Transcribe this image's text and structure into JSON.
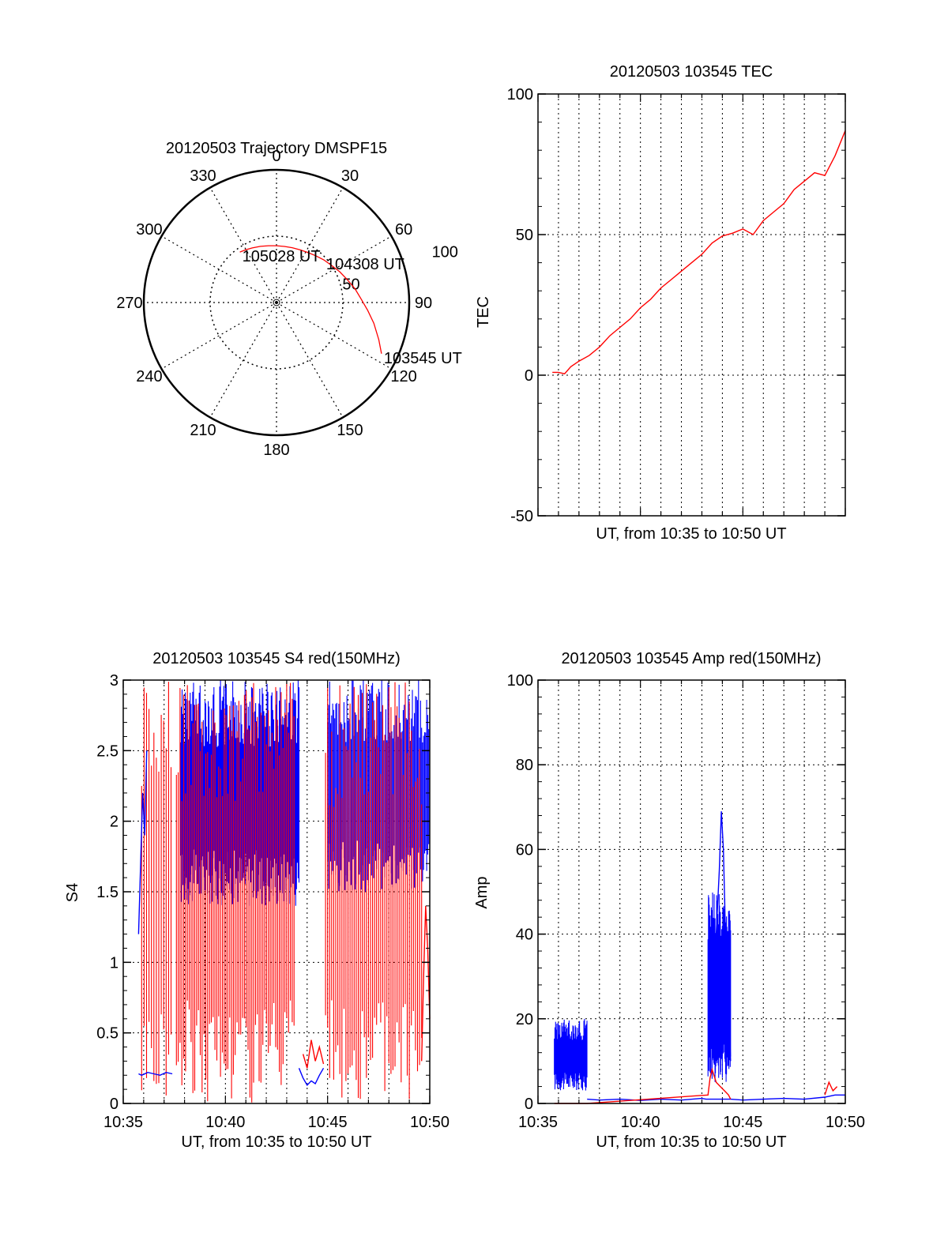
{
  "colors": {
    "red": "#ff0000",
    "blue": "#0000ff",
    "axis": "#000000",
    "grid": "#000000"
  },
  "chart_data": [
    {
      "id": "trajectory",
      "type": "polar",
      "title": "20120503 Trajectory DMSPF15",
      "angle_labels": [
        "0",
        "30",
        "60",
        "90",
        "120",
        "150",
        "180",
        "210",
        "240",
        "270",
        "300",
        "330"
      ],
      "angle_values": [
        0,
        30,
        60,
        90,
        120,
        150,
        180,
        210,
        240,
        270,
        300,
        330
      ],
      "radial_labels": [
        "50",
        "100"
      ],
      "radial_values": [
        50,
        100
      ],
      "r_max": 100,
      "track": {
        "azimuth": [
          116,
          110,
          102,
          95,
          88,
          80,
          72,
          64,
          56,
          48,
          40,
          32,
          24,
          16,
          8,
          0,
          -8,
          -16,
          -24,
          -30,
          -36
        ],
        "elevation": [
          12,
          18,
          25,
          31,
          36,
          40,
          44,
          47,
          50,
          52,
          54,
          55.5,
          56.5,
          57,
          57.3,
          57.2,
          56.8,
          56,
          55,
          54,
          53
        ]
      },
      "time_labels": [
        {
          "text": "103545 UT",
          "az": 116,
          "el": 12
        },
        {
          "text": "104308 UT",
          "az": 48,
          "el": 52
        },
        {
          "text": "105028 UT",
          "az": -36,
          "el": 53
        }
      ]
    },
    {
      "id": "tec",
      "type": "line",
      "title": "20120503 103545 TEC",
      "xlabel": "UT, from 10:35 to 10:50 UT",
      "ylabel": "TEC",
      "xlim": [
        0,
        15
      ],
      "ylim": [
        -50,
        100
      ],
      "y_ticks": [
        "-50",
        "0",
        "50",
        "100"
      ],
      "x_tick_labels": [],
      "series": [
        {
          "color": "#ff0000",
          "x": [
            0.7,
            1.0,
            1.3,
            1.6,
            2.0,
            2.5,
            3.0,
            3.5,
            4.0,
            4.5,
            5.0,
            5.5,
            6.0,
            6.5,
            7.0,
            7.5,
            8.0,
            8.5,
            9.0,
            9.5,
            10.0,
            10.5,
            11.0,
            11.5,
            12.0,
            12.5,
            13.0,
            13.5,
            14.0,
            14.5,
            15.0
          ],
          "y": [
            1,
            1,
            0.5,
            3,
            5,
            7,
            10,
            14,
            17,
            20,
            24,
            27,
            31,
            34,
            37,
            40,
            43,
            47,
            49.5,
            50.5,
            52,
            50,
            55,
            58,
            61,
            66,
            69,
            72,
            71,
            78,
            87
          ]
        }
      ]
    },
    {
      "id": "s4",
      "type": "line",
      "title": "20120503 103545 S4 red(150MHz)",
      "xlabel": "UT, from 10:35 to 10:50 UT",
      "ylabel": "S4",
      "xlim": [
        0,
        15
      ],
      "ylim": [
        0,
        3
      ],
      "y_ticks": [
        "0",
        "0.5",
        "1",
        "1.5",
        "2",
        "2.5",
        "3"
      ],
      "x_tick_labels": [
        "10:35",
        "10:40",
        "10:45",
        "10:50"
      ],
      "x_tick_values": [
        0,
        5,
        10,
        15
      ],
      "noise_ranges": [
        {
          "color": "#0000ff",
          "x0": 2.8,
          "x1": 8.6,
          "ymin": 1.4,
          "ymax": 3,
          "step": 0.04
        },
        {
          "color": "#ff0000",
          "x0": 0.9,
          "x1": 2.4,
          "ymin": 0,
          "ymax": 3,
          "step": 0.12
        },
        {
          "color": "#ff0000",
          "x0": 2.6,
          "x1": 8.4,
          "ymin": 0,
          "ymax": 3,
          "step": 0.09
        },
        {
          "color": "#0000ff",
          "x0": 10.0,
          "x1": 15,
          "ymin": 1.5,
          "ymax": 3,
          "step": 0.05
        },
        {
          "color": "#ff0000",
          "x0": 9.9,
          "x1": 14.6,
          "ymin": 0,
          "ymax": 3,
          "step": 0.1
        }
      ],
      "series": [
        {
          "color": "#0000ff",
          "x": [
            0.75,
            0.9,
            1.2,
            1.5,
            1.8,
            2.1,
            2.4
          ],
          "y": [
            0.21,
            0.2,
            0.22,
            0.21,
            0.2,
            0.22,
            0.21
          ]
        },
        {
          "color": "#0000ff",
          "x": [
            0.75,
            0.85,
            0.95,
            1.05,
            1.15
          ],
          "y": [
            1.2,
            1.7,
            2.2,
            1.9,
            2.5
          ]
        },
        {
          "color": "#0000ff",
          "x": [
            8.6,
            8.8,
            9.0,
            9.2,
            9.4,
            9.6,
            9.8
          ],
          "y": [
            0.25,
            0.18,
            0.13,
            0.16,
            0.14,
            0.2,
            0.25
          ]
        },
        {
          "color": "#ff0000",
          "x": [
            8.8,
            9.0,
            9.2,
            9.4,
            9.6,
            9.8
          ],
          "y": [
            0.35,
            0.25,
            0.45,
            0.3,
            0.4,
            0.28
          ]
        },
        {
          "color": "#ff0000",
          "x": [
            14.6,
            14.7,
            14.8,
            14.9,
            15.0
          ],
          "y": [
            0.3,
            0.9,
            1.4,
            1.1,
            0.6
          ]
        }
      ]
    },
    {
      "id": "amp",
      "type": "line",
      "title": "20120503 103545 Amp red(150MHz)",
      "xlabel": "UT, from 10:35 to 10:50 UT",
      "ylabel": "Amp",
      "xlim": [
        0,
        15
      ],
      "ylim": [
        0,
        100
      ],
      "y_ticks": [
        "0",
        "20",
        "40",
        "60",
        "80",
        "100"
      ],
      "x_tick_labels": [
        "10:35",
        "10:40",
        "10:45",
        "10:50"
      ],
      "x_tick_values": [
        0,
        5,
        10,
        15
      ],
      "noise_ranges": [
        {
          "color": "#0000ff",
          "x0": 0.8,
          "x1": 2.4,
          "ymin": 3,
          "ymax": 20,
          "step": 0.03
        },
        {
          "color": "#0000ff",
          "x0": 8.3,
          "x1": 9.4,
          "ymin": 5,
          "ymax": 50,
          "step": 0.02
        }
      ],
      "series": [
        {
          "color": "#0000ff",
          "x": [
            2.4,
            3.0,
            4.0,
            5.0,
            6.0,
            7.0,
            8.0,
            8.2,
            9.4,
            10.0,
            11.0,
            12.0,
            13.0,
            14.0,
            14.5,
            15.0
          ],
          "y": [
            1,
            0.8,
            1,
            0.7,
            1,
            0.8,
            1.2,
            1.0,
            1.0,
            0.8,
            1,
            1.2,
            1,
            1.5,
            2,
            2
          ]
        },
        {
          "color": "#0000ff",
          "x": [
            8.6,
            8.75,
            8.85,
            8.95,
            9.05,
            9.15,
            9.3,
            9.4
          ],
          "y": [
            30,
            45,
            55,
            69,
            60,
            40,
            25,
            10
          ]
        },
        {
          "color": "#ff0000",
          "x": [
            0.8,
            2.4,
            8.3,
            8.4,
            8.5,
            8.7,
            8.9,
            9.1,
            9.3,
            9.4
          ],
          "y": [
            0,
            0,
            2,
            6,
            8,
            5,
            4,
            3,
            2,
            1
          ]
        },
        {
          "color": "#ff0000",
          "x": [
            14.0,
            14.2,
            14.4,
            14.6
          ],
          "y": [
            2,
            5,
            3,
            4
          ]
        }
      ]
    }
  ]
}
